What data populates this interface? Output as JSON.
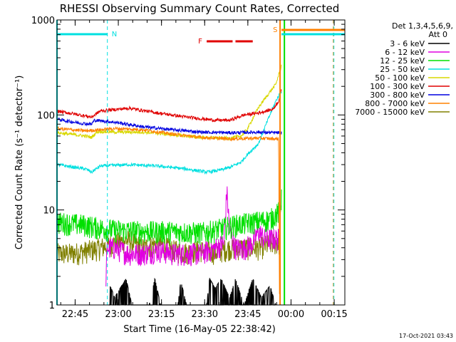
{
  "chart_data": {
    "type": "line",
    "title": "RHESSI Observing Summary Count Rates, Corrected",
    "ylabel": "Corrected Count Rate (s⁻¹ detector⁻¹)",
    "xlabel": "Start Time (16-May-05 22:38:42)",
    "yscale": "log",
    "ylim": [
      1,
      1000
    ],
    "xlim_minutes": [
      0,
      100
    ],
    "x_ticks": [
      {
        "label": "22:45",
        "t": 6.3
      },
      {
        "label": "23:00",
        "t": 21.3
      },
      {
        "label": "23:15",
        "t": 36.3
      },
      {
        "label": "23:30",
        "t": 51.3
      },
      {
        "label": "23:45",
        "t": 66.3
      },
      {
        "label": "00:00",
        "t": 81.3
      },
      {
        "label": "00:15",
        "t": 96.3
      }
    ],
    "y_ticks": [
      {
        "label": "1",
        "v": 1
      },
      {
        "label": "10",
        "v": 10
      },
      {
        "label": "100",
        "v": 100
      },
      {
        "label": "1000",
        "v": 1000
      }
    ],
    "detector_info": [
      "Det 1,3,4,5,6,9,",
      "Att 0"
    ],
    "footer_date": "17-Oct-2021 03:43",
    "legend": [
      {
        "label": "3 - 6 keV",
        "color": "#000000"
      },
      {
        "label": "6 - 12 keV",
        "color": "#e000e0"
      },
      {
        "label": "12 - 25 keV",
        "color": "#00e000"
      },
      {
        "label": "25 - 50 keV",
        "color": "#00e0e0"
      },
      {
        "label": "50 - 100 keV",
        "color": "#d8d800"
      },
      {
        "label": "100 - 300 keV",
        "color": "#e00000"
      },
      {
        "label": "300 - 800 keV",
        "color": "#0000e0"
      },
      {
        "label": "800 - 7000 keV",
        "color": "#ff8000"
      },
      {
        "label": "7000 - 15000 keV",
        "color": "#808000"
      }
    ],
    "series": [
      {
        "name": "100 - 300 keV",
        "color": "#e00000",
        "points": [
          [
            0,
            110
          ],
          [
            8,
            100
          ],
          [
            12,
            95
          ],
          [
            15,
            110
          ],
          [
            25,
            118
          ],
          [
            35,
            105
          ],
          [
            45,
            95
          ],
          [
            55,
            88
          ],
          [
            60,
            88
          ],
          [
            65,
            100
          ],
          [
            70,
            105
          ],
          [
            75,
            115
          ],
          [
            77,
            140
          ],
          [
            78,
            185
          ]
        ]
      },
      {
        "name": "300 - 800 keV",
        "color": "#0000e0",
        "points": [
          [
            0,
            90
          ],
          [
            8,
            82
          ],
          [
            12,
            80
          ],
          [
            13,
            88
          ],
          [
            20,
            84
          ],
          [
            30,
            75
          ],
          [
            40,
            70
          ],
          [
            50,
            66
          ],
          [
            60,
            65
          ],
          [
            70,
            66
          ],
          [
            75,
            65
          ],
          [
            78,
            65
          ]
        ]
      },
      {
        "name": "800 - 7000 keV",
        "color": "#ff8000",
        "points": [
          [
            0,
            72
          ],
          [
            10,
            68
          ],
          [
            20,
            72
          ],
          [
            30,
            70
          ],
          [
            40,
            63
          ],
          [
            50,
            58
          ],
          [
            60,
            56
          ],
          [
            70,
            57
          ],
          [
            76,
            56
          ],
          [
            77,
            56
          ],
          [
            77.3,
            1
          ]
        ]
      },
      {
        "name": "50 - 100 keV",
        "color": "#d8d800",
        "points": [
          [
            0,
            65
          ],
          [
            10,
            60
          ],
          [
            12,
            58
          ],
          [
            14,
            67
          ],
          [
            20,
            66
          ],
          [
            30,
            66
          ],
          [
            40,
            62
          ],
          [
            50,
            58
          ],
          [
            60,
            57
          ],
          [
            64,
            60
          ],
          [
            66,
            70
          ],
          [
            70,
            120
          ],
          [
            73,
            160
          ],
          [
            76,
            210
          ],
          [
            78,
            330
          ]
        ]
      },
      {
        "name": "25 - 50 keV",
        "color": "#00e0e0",
        "points": [
          [
            0,
            30
          ],
          [
            10,
            27
          ],
          [
            12,
            25
          ],
          [
            15,
            29
          ],
          [
            25,
            30
          ],
          [
            35,
            29
          ],
          [
            45,
            27
          ],
          [
            52,
            25
          ],
          [
            56,
            26
          ],
          [
            60,
            28
          ],
          [
            64,
            32
          ],
          [
            66,
            38
          ],
          [
            70,
            50
          ],
          [
            73,
            85
          ],
          [
            76,
            140
          ],
          [
            78,
            180
          ]
        ]
      },
      {
        "name": "12 - 25 keV",
        "color": "#00e000",
        "points": [
          [
            0,
            7.5
          ],
          [
            10,
            7
          ],
          [
            15,
            6.5
          ],
          [
            20,
            6.2
          ],
          [
            30,
            6
          ],
          [
            40,
            6
          ],
          [
            50,
            5.8
          ],
          [
            55,
            6.2
          ],
          [
            62,
            7
          ],
          [
            68,
            7.5
          ],
          [
            74,
            8
          ],
          [
            77,
            9.5
          ],
          [
            78,
            13
          ]
        ]
      },
      {
        "name": "6 - 12 keV",
        "color": "#e000e0",
        "points": [
          [
            17,
            2
          ],
          [
            17.5,
            4
          ],
          [
            20,
            4
          ],
          [
            25,
            3.5
          ],
          [
            30,
            3.5
          ],
          [
            35,
            3.8
          ],
          [
            40,
            3.5
          ],
          [
            45,
            3.5
          ],
          [
            50,
            3.5
          ],
          [
            55,
            4
          ],
          [
            58,
            4.5
          ],
          [
            59,
            16
          ],
          [
            60,
            6
          ],
          [
            62,
            4
          ],
          [
            65,
            4
          ],
          [
            68,
            4.5
          ],
          [
            70,
            6
          ],
          [
            72,
            5
          ],
          [
            75,
            5
          ],
          [
            77.5,
            5
          ]
        ]
      },
      {
        "name": "7000 - 15000 keV",
        "color": "#808000",
        "points": [
          [
            0,
            3.5
          ],
          [
            5,
            3.5
          ],
          [
            10,
            3.7
          ],
          [
            15,
            4
          ],
          [
            20,
            4.5
          ],
          [
            25,
            4.8
          ],
          [
            30,
            4
          ],
          [
            35,
            4.5
          ],
          [
            40,
            3.8
          ],
          [
            45,
            3.6
          ],
          [
            50,
            3.8
          ],
          [
            55,
            3.6
          ],
          [
            60,
            4
          ],
          [
            65,
            4
          ],
          [
            70,
            4
          ],
          [
            75,
            4.5
          ],
          [
            77.5,
            4.5
          ]
        ]
      },
      {
        "name": "3 - 6 keV",
        "color": "#000000",
        "points": [
          [
            18,
            1
          ],
          [
            18.5,
            1.6
          ],
          [
            20,
            1.2
          ],
          [
            24,
            1.9
          ],
          [
            26,
            1
          ],
          [
            32,
            1
          ],
          [
            34,
            1.9
          ],
          [
            36,
            1
          ],
          [
            42,
            1
          ],
          [
            43,
            1.8
          ],
          [
            45,
            1
          ],
          [
            52,
            1
          ],
          [
            53,
            1.9
          ],
          [
            55,
            1.5
          ],
          [
            57,
            1.9
          ],
          [
            60,
            1.2
          ],
          [
            62,
            1.9
          ],
          [
            65,
            1
          ],
          [
            68,
            1.9
          ],
          [
            71,
            1.2
          ],
          [
            74,
            1.6
          ],
          [
            76,
            1
          ]
        ]
      }
    ],
    "top_bars": [
      {
        "label": "N",
        "color": "#00e0e0",
        "t_start": 0,
        "t_end": 17.5
      },
      {
        "label": "F",
        "color": "#e00000",
        "t_start": 52,
        "t_end": 61
      },
      {
        "label": "F",
        "color": "#e00000",
        "t_start": 62,
        "t_end": 68
      },
      {
        "label": "S",
        "color": "#ff8000",
        "t_start": 78,
        "t_end": 100
      },
      {
        "label": "",
        "color": "#00e0e0",
        "t_start": 78,
        "t_end": 100
      }
    ],
    "vertical_markers": [
      {
        "t": 0,
        "color": "#00e0e0",
        "style": "solid"
      },
      {
        "t": 17.5,
        "color": "#00e0e0",
        "style": "dashed"
      },
      {
        "t": 77.5,
        "color": "#ff8000",
        "style": "solid"
      },
      {
        "t": 79,
        "color": "#00e000",
        "style": "solid"
      },
      {
        "t": 96,
        "color": "#ff8000",
        "style": "dashed"
      },
      {
        "t": 96.2,
        "color": "#00e0e0",
        "style": "dashed"
      }
    ]
  }
}
